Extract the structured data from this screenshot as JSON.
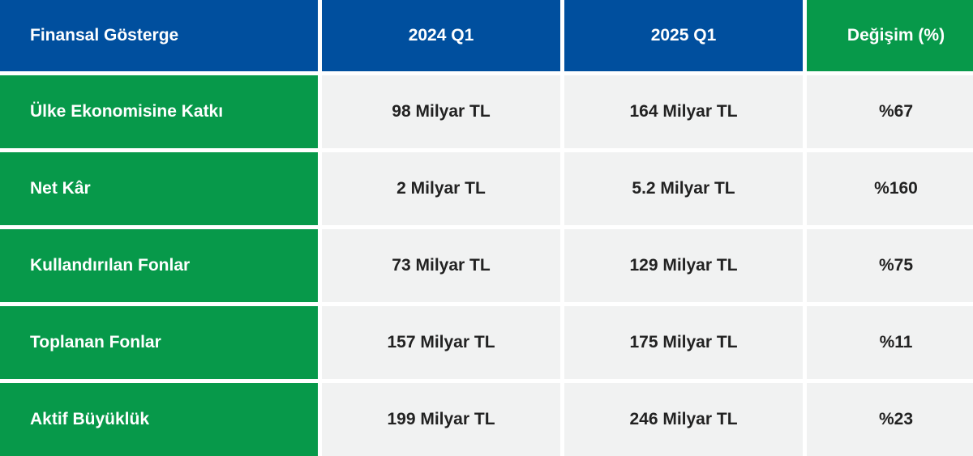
{
  "colors": {
    "header_blue": "#004f9e",
    "accent_green": "#07994a",
    "cell_gray": "#f1f2f2",
    "text_dark": "#222222"
  },
  "headers": {
    "metric": "Finansal Gösterge",
    "period_1": "2024 Q1",
    "period_2": "2025 Q1",
    "change": "Değişim (%)"
  },
  "rows": [
    {
      "metric": "Ülke Ekonomisine Katkı",
      "period_1": "98 Milyar TL",
      "period_2": "164 Milyar TL",
      "change": "%67"
    },
    {
      "metric": "Net Kâr",
      "period_1": "2 Milyar TL",
      "period_2": "5.2 Milyar TL",
      "change": "%160"
    },
    {
      "metric": "Kullandırılan Fonlar",
      "period_1": "73 Milyar TL",
      "period_2": "129 Milyar TL",
      "change": "%75"
    },
    {
      "metric": "Toplanan Fonlar",
      "period_1": "157 Milyar TL",
      "period_2": "175 Milyar TL",
      "change": "%11"
    },
    {
      "metric": "Aktif Büyüklük",
      "period_1": "199 Milyar TL",
      "period_2": "246 Milyar TL",
      "change": "%23"
    }
  ]
}
